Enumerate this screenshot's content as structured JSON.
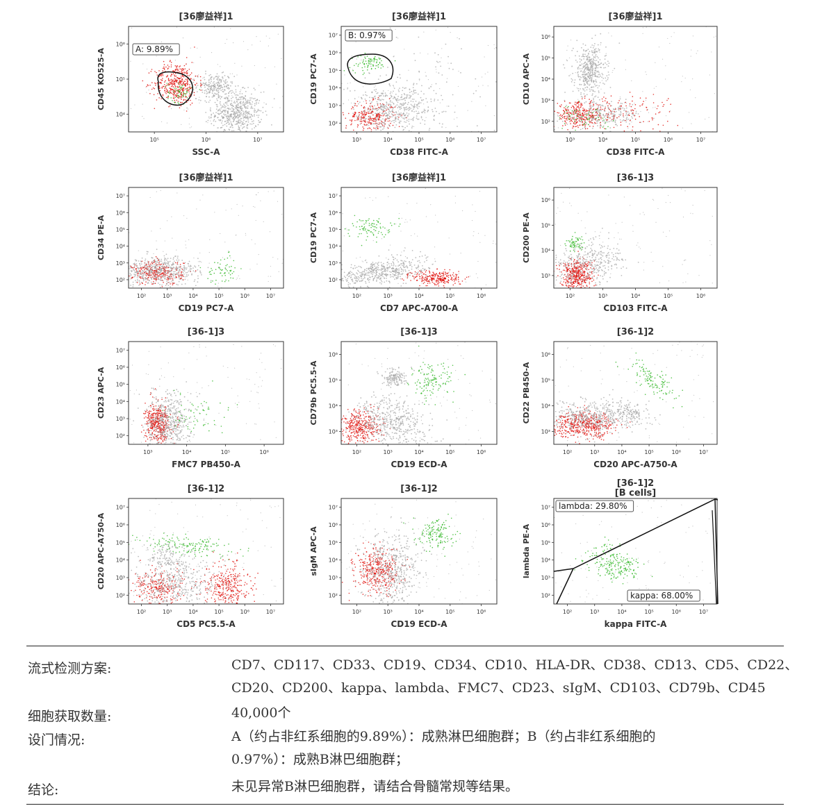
{
  "colors": {
    "gray": "#a8a8a8",
    "red": "#e0140f",
    "green": "#36b82a",
    "gate": "#111111"
  },
  "plots": [
    {
      "title": "[36廖益祥]1",
      "subtitle": "",
      "xlabel": "SSC-A",
      "ylabel": "CD45 KO525-A",
      "xticks": [
        "10⁵",
        "10⁶",
        "10⁷"
      ],
      "yticks": [
        "10⁴",
        "10⁵",
        "10⁶"
      ],
      "gate_label": "A: 9.89%"
    },
    {
      "title": "[36廖益祥]1",
      "subtitle": "",
      "xlabel": "CD38 FITC-A",
      "ylabel": "CD19 PC7-A",
      "xticks": [
        "10³",
        "10⁴",
        "10⁵",
        "10⁶",
        "10⁷"
      ],
      "yticks": [
        "10²",
        "10³",
        "10⁴",
        "10⁵",
        "10⁶",
        "10⁷"
      ],
      "gate_label": "B: 0.97%"
    },
    {
      "title": "[36廖益祥]1",
      "subtitle": "",
      "xlabel": "CD38 FITC-A",
      "ylabel": "CD10 APC-A",
      "xticks": [
        "10³",
        "10⁴",
        "10⁵",
        "10⁶",
        "10⁷"
      ],
      "yticks": [
        "10²",
        "10³",
        "10⁴",
        "10⁵",
        "10⁶"
      ]
    },
    {
      "title": "[36廖益祥]1",
      "subtitle": "",
      "xlabel": "CD19 PC7-A",
      "ylabel": "CD34 PE-A",
      "xticks": [
        "10²",
        "10³",
        "10⁴",
        "10⁵",
        "10⁶",
        "10⁷"
      ],
      "yticks": [
        "10²",
        "10³",
        "10⁴",
        "10⁵",
        "10⁶",
        "10⁷"
      ]
    },
    {
      "title": "[36廖益祥]1",
      "subtitle": "",
      "xlabel": "CD7 APC-A700-A",
      "ylabel": "CD19 PC7-A",
      "xticks": [
        "10²",
        "10³",
        "10⁴",
        "10⁵",
        "10⁶"
      ],
      "yticks": [
        "10²",
        "10³",
        "10⁴",
        "10⁵",
        "10⁶",
        "10⁷"
      ]
    },
    {
      "title": "[36-1]3",
      "subtitle": "",
      "xlabel": "CD103 FITC-A",
      "ylabel": "CD200 PE-A",
      "xticks": [
        "10²",
        "10³",
        "10⁴",
        "10⁵",
        "10⁶"
      ],
      "yticks": [
        "10³",
        "10⁴",
        "10⁵",
        "10⁶"
      ]
    },
    {
      "title": "[36-1]3",
      "subtitle": "",
      "xlabel": "FMC7 PB450-A",
      "ylabel": "CD23 APC-A",
      "xticks": [
        "10³",
        "10⁴",
        "10⁵",
        "10⁶"
      ],
      "yticks": [
        "10²",
        "10³",
        "10⁴",
        "10⁵",
        "10⁶",
        "10⁷"
      ]
    },
    {
      "title": "[36-1]3",
      "subtitle": "",
      "xlabel": "CD19 ECD-A",
      "ylabel": "CD79b PC5.5-A",
      "xticks": [
        "10²",
        "10³",
        "10⁴",
        "10⁵",
        "10⁶"
      ],
      "yticks": [
        "10³",
        "10⁴",
        "10⁵",
        "10⁶"
      ]
    },
    {
      "title": "[36-1]2",
      "subtitle": "",
      "xlabel": "CD20 APC-A750-A",
      "ylabel": "CD22 PB450-A",
      "xticks": [
        "10²",
        "10³",
        "10⁴",
        "10⁵",
        "10⁶",
        "10⁷"
      ],
      "yticks": [
        "10³",
        "10⁴",
        "10⁵",
        "10⁶"
      ]
    },
    {
      "title": "[36-1]2",
      "subtitle": "",
      "xlabel": "CD5 PC5.5-A",
      "ylabel": "CD20 APC-A750-A",
      "xticks": [
        "10²",
        "10³",
        "10⁴",
        "10⁵",
        "10⁶",
        "10⁷"
      ],
      "yticks": [
        "10²",
        "10³",
        "10⁴",
        "10⁵",
        "10⁶",
        "10⁷"
      ]
    },
    {
      "title": "[36-1]2",
      "subtitle": "",
      "xlabel": "CD19 ECD-A",
      "ylabel": "sIgM APC-A",
      "xticks": [
        "10²",
        "10³",
        "10⁴",
        "10⁵",
        "10⁶"
      ],
      "yticks": [
        "10²",
        "10³",
        "10⁴",
        "10⁵",
        "10⁶",
        "10⁷"
      ]
    },
    {
      "title": "[36-1]2",
      "subtitle": "[B cells]",
      "xlabel": "kappa FITC-A",
      "ylabel": "lambda PE-A",
      "xticks": [
        "10²",
        "10³",
        "10⁴",
        "10⁵",
        "10⁶",
        "10⁷"
      ],
      "yticks": [
        "10²",
        "10³",
        "10⁴",
        "10⁵",
        "10⁶",
        "10⁷"
      ],
      "gate_label": "lambda: 29.80%",
      "gate_label2": "kappa: 68.00%"
    }
  ],
  "chart_data": {
    "type": "scatter",
    "panels": 12,
    "gates": [
      {
        "panel": 1,
        "name": "A",
        "percent": 9.89
      },
      {
        "panel": 2,
        "name": "B",
        "percent": 0.97
      },
      {
        "panel": 12,
        "name": "lambda",
        "percent": 29.8
      },
      {
        "panel": 12,
        "name": "kappa",
        "percent": 68.0
      }
    ],
    "legend": "none"
  },
  "info": {
    "scheme_label": "流式检测方案:",
    "scheme_line1": "CD7、CD117、CD33、CD19、CD34、CD10、HLA-DR、CD38、CD13、CD5、CD22、",
    "scheme_line2": "CD20、CD200、kappa、lambda、FMC7、CD23、sIgM、CD103、CD79b、CD45",
    "count_label": "细胞获取数量:",
    "count_value": "40,000个",
    "gate_label": "设门情况:",
    "gate_line1": "A（约占非红系细胞的9.89%）：成熟淋巴细胞群；B（约占非红系细胞的",
    "gate_line2": "0.97%）：成熟B淋巴细胞群；",
    "conclusion_label": "结论:",
    "conclusion_value": "未见异常B淋巴细胞群，请结合骨髓常规等结果。"
  }
}
